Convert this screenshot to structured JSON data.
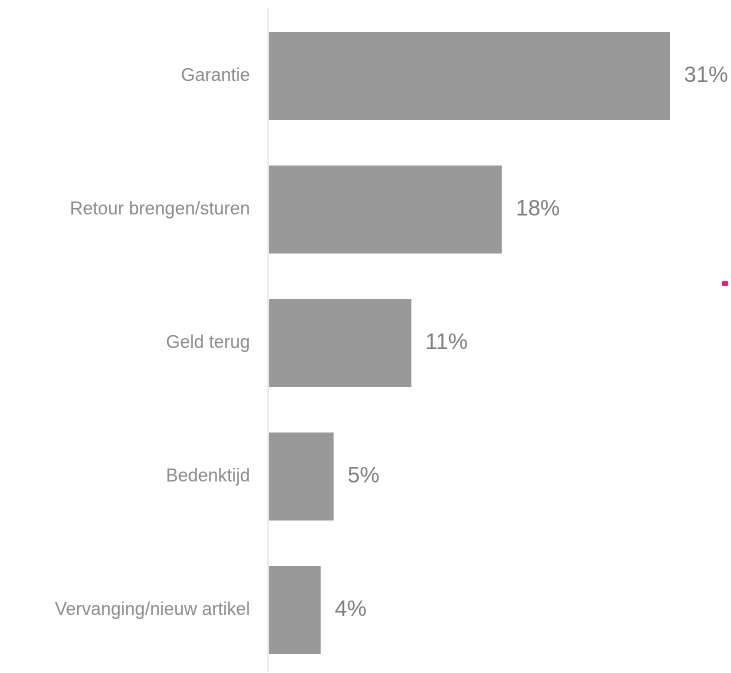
{
  "chart_data": {
    "type": "bar",
    "orientation": "horizontal",
    "categories": [
      "Garantie",
      "Retour brengen/sturen",
      "Geld terug",
      "Bedenktijd",
      "Vervanging/nieuw artikel"
    ],
    "values": [
      31,
      18,
      11,
      5,
      4
    ],
    "value_labels": [
      "31%",
      "18%",
      "11%",
      "5%",
      "4%"
    ],
    "unit": "%",
    "xlim": [
      0,
      31
    ],
    "grid": false,
    "legend": "none",
    "colors": {
      "bar": "#999999",
      "axis": "#d9d9d9",
      "category_text": "#8c8c8c",
      "value_text": "#7f7f7f",
      "stray_mark": "#e0208c"
    }
  }
}
